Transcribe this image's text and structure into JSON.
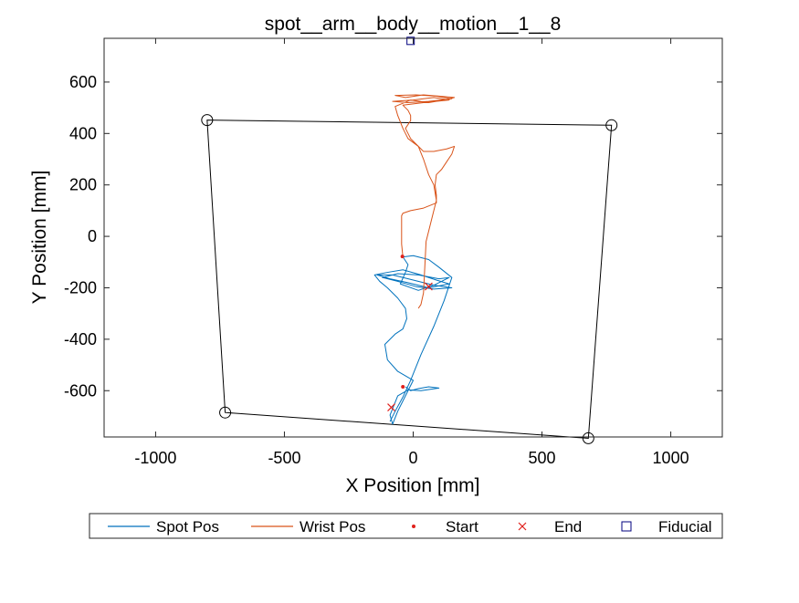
{
  "chart_data": {
    "type": "scatter",
    "title": "spot__arm__body__motion__1__8",
    "xlabel": "X Position [mm]",
    "ylabel": "Y Position [mm]",
    "xlim": [
      -1200,
      1200
    ],
    "ylim": [
      -780,
      770
    ],
    "xticks": [
      -1000,
      -500,
      0,
      500,
      1000
    ],
    "yticks": [
      -600,
      -400,
      -200,
      0,
      200,
      400,
      600
    ],
    "grid": false,
    "legend_position": "bottom",
    "legend": [
      "Spot Pos",
      "Wrist Pos",
      "Start",
      "End",
      "Fiducial"
    ],
    "series": [
      {
        "name": "Spot Pos",
        "color": "#0072BD",
        "points": [
          [
            -30,
            -585
          ],
          [
            -10,
            -600
          ],
          [
            20,
            -592
          ],
          [
            60,
            -585
          ],
          [
            100,
            -590
          ],
          [
            30,
            -600
          ],
          [
            -20,
            -597
          ],
          [
            -60,
            -620
          ],
          [
            -90,
            -695
          ],
          [
            -80,
            -730
          ],
          [
            -60,
            -680
          ],
          [
            -30,
            -620
          ],
          [
            0,
            -560
          ],
          [
            -60,
            -525
          ],
          [
            -100,
            -480
          ],
          [
            -110,
            -420
          ],
          [
            -70,
            -380
          ],
          [
            -40,
            -360
          ],
          [
            -25,
            -320
          ],
          [
            -30,
            -280
          ],
          [
            -60,
            -240
          ],
          [
            -100,
            -200
          ],
          [
            -130,
            -175
          ],
          [
            -150,
            -150
          ],
          [
            -100,
            -140
          ],
          [
            -40,
            -130
          ],
          [
            30,
            -150
          ],
          [
            90,
            -170
          ],
          [
            140,
            -185
          ],
          [
            60,
            -200
          ],
          [
            -20,
            -180
          ],
          [
            -90,
            -165
          ],
          [
            -140,
            -150
          ],
          [
            -80,
            -150
          ],
          [
            0,
            -170
          ],
          [
            80,
            -190
          ],
          [
            150,
            -200
          ],
          [
            80,
            -205
          ],
          [
            10,
            -195
          ],
          [
            -60,
            -175
          ],
          [
            -120,
            -160
          ],
          [
            -60,
            -145
          ],
          [
            20,
            -150
          ],
          [
            100,
            -165
          ],
          [
            140,
            -160
          ],
          [
            80,
            -190
          ],
          [
            20,
            -210
          ],
          [
            -50,
            -185
          ],
          [
            -30,
            -140
          ],
          [
            -20,
            -110
          ],
          [
            -40,
            -80
          ],
          [
            0,
            -75
          ],
          [
            60,
            -90
          ],
          [
            100,
            -120
          ],
          [
            150,
            -160
          ],
          [
            120,
            -250
          ],
          [
            80,
            -350
          ],
          [
            30,
            -460
          ],
          [
            -10,
            -560
          ],
          [
            -40,
            -625
          ],
          [
            -70,
            -680
          ],
          [
            -90,
            -720
          ]
        ]
      },
      {
        "name": "Wrist Pos",
        "color": "#D95319",
        "points": [
          [
            -40,
            -80
          ],
          [
            -45,
            -30
          ],
          [
            -45,
            30
          ],
          [
            -45,
            80
          ],
          [
            -40,
            90
          ],
          [
            -10,
            100
          ],
          [
            40,
            110
          ],
          [
            90,
            130
          ],
          [
            90,
            160
          ],
          [
            85,
            200
          ],
          [
            90,
            240
          ],
          [
            110,
            260
          ],
          [
            130,
            290
          ],
          [
            150,
            320
          ],
          [
            160,
            350
          ],
          [
            130,
            340
          ],
          [
            80,
            330
          ],
          [
            40,
            330
          ],
          [
            20,
            350
          ],
          [
            -20,
            380
          ],
          [
            -40,
            420
          ],
          [
            -60,
            470
          ],
          [
            -70,
            505
          ],
          [
            -10,
            530
          ],
          [
            60,
            520
          ],
          [
            120,
            530
          ],
          [
            160,
            540
          ],
          [
            100,
            545
          ],
          [
            40,
            550
          ],
          [
            -30,
            540
          ],
          [
            -70,
            548
          ],
          [
            10,
            550
          ],
          [
            90,
            545
          ],
          [
            150,
            535
          ],
          [
            60,
            525
          ],
          [
            -20,
            520
          ],
          [
            -80,
            525
          ],
          [
            0,
            530
          ],
          [
            80,
            540
          ],
          [
            140,
            530
          ],
          [
            40,
            520
          ],
          [
            -40,
            510
          ],
          [
            -20,
            490
          ],
          [
            -10,
            470
          ],
          [
            -10,
            450
          ],
          [
            -30,
            420
          ],
          [
            -10,
            380
          ],
          [
            20,
            350
          ],
          [
            40,
            300
          ],
          [
            60,
            240
          ],
          [
            80,
            200
          ],
          [
            90,
            140
          ],
          [
            70,
            60
          ],
          [
            50,
            -20
          ],
          [
            45,
            -120
          ],
          [
            40,
            -220
          ],
          [
            30,
            -265
          ],
          [
            20,
            -280
          ]
        ]
      },
      {
        "name": "Start",
        "color": "#E0201B",
        "points": [
          [
            -42,
            -78
          ],
          [
            -40,
            -585
          ]
        ]
      },
      {
        "name": "End",
        "color": "#E0201B",
        "points": [
          [
            60,
            -195
          ],
          [
            -85,
            -665
          ]
        ]
      },
      {
        "name": "Fiducial",
        "color": "#00007F",
        "points": [
          [
            -10,
            760
          ]
        ]
      }
    ],
    "boundary": {
      "color": "#000000",
      "points": [
        [
          -800,
          452
        ],
        [
          770,
          432
        ],
        [
          680,
          -785
        ],
        [
          -730,
          -685
        ]
      ]
    }
  }
}
